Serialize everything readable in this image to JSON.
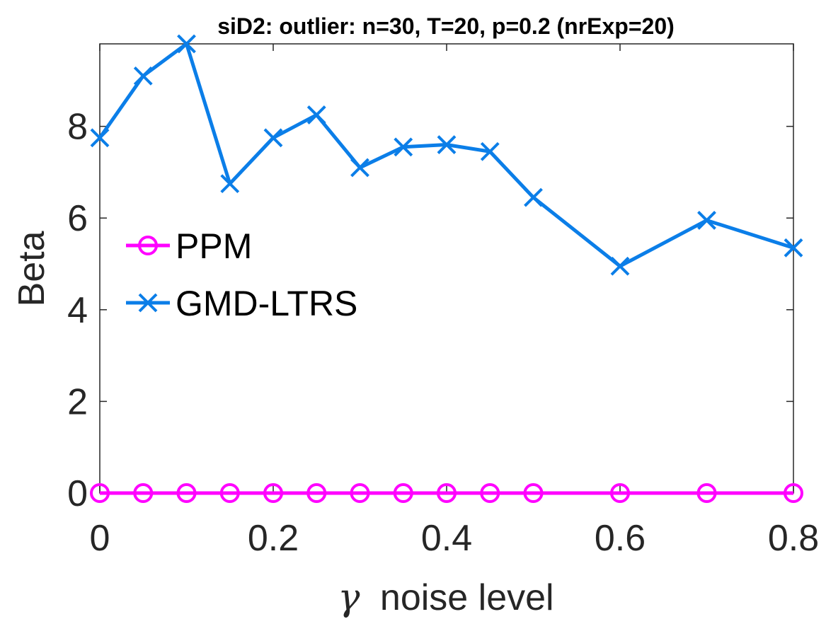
{
  "chart_data": {
    "type": "line",
    "title": "siD2: outlier: n=30, T=20, p=0.2 (nrExp=20)",
    "xlabel_symbol": "γ",
    "xlabel": "noise level",
    "ylabel": "Beta",
    "xlim": [
      0,
      0.8
    ],
    "ylim": [
      0,
      9.8
    ],
    "xticks": [
      0,
      0.2,
      0.4,
      0.6,
      0.8
    ],
    "xtick_labels": [
      "0",
      "0.2",
      "0.4",
      "0.6",
      "0.8"
    ],
    "yticks": [
      0,
      2,
      4,
      6,
      8
    ],
    "ytick_labels": [
      "0",
      "2",
      "4",
      "6",
      "8"
    ],
    "grid": false,
    "legend_position": "center-left",
    "x": [
      0,
      0.05,
      0.1,
      0.15,
      0.2,
      0.25,
      0.3,
      0.35,
      0.4,
      0.45,
      0.5,
      0.6,
      0.7,
      0.8
    ],
    "series": [
      {
        "name": "PPM",
        "color": "#ff00ff",
        "marker": "circle",
        "values": [
          0,
          0,
          0,
          0,
          0,
          0,
          0,
          0,
          0,
          0,
          0,
          0,
          0,
          0
        ]
      },
      {
        "name": "GMD-LTRS",
        "color": "#0b7ee8",
        "marker": "x",
        "values": [
          7.75,
          9.1,
          9.8,
          6.75,
          7.75,
          8.25,
          7.1,
          7.55,
          7.6,
          7.45,
          6.45,
          4.95,
          5.95,
          5.35
        ]
      }
    ]
  }
}
